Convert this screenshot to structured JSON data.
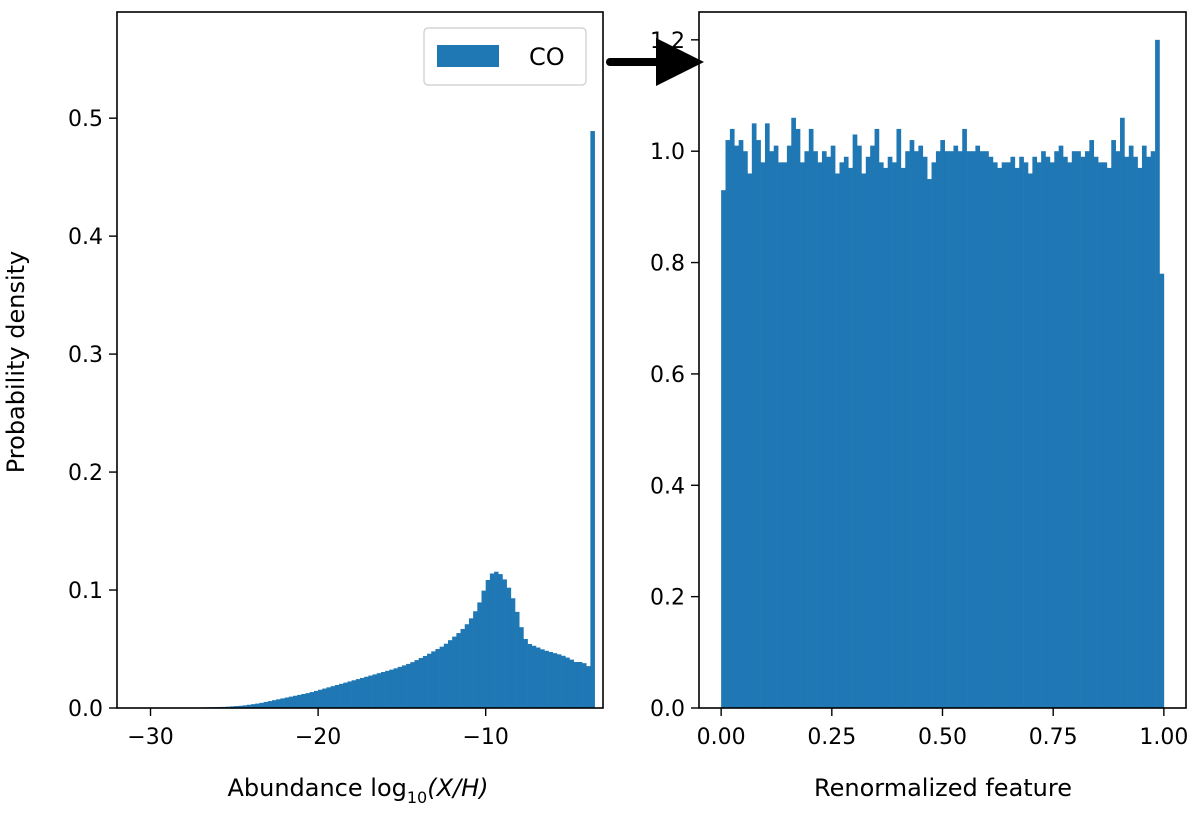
{
  "chart_data": [
    {
      "type": "bar",
      "ylabel": "Probability density",
      "xlabel_prefix": "Abundance log",
      "xlabel_subscript": "10",
      "xlabel_math": "(X/H)",
      "xlim": [
        -32,
        -3
      ],
      "ylim": [
        0,
        0.59
      ],
      "xticks": [
        -30,
        -20,
        -10
      ],
      "xtick_labels": [
        "−30",
        "−20",
        "−10"
      ],
      "yticks": [
        0.0,
        0.1,
        0.2,
        0.3,
        0.4,
        0.5
      ],
      "ytick_labels": [
        "0.0",
        "0.1",
        "0.2",
        "0.3",
        "0.4",
        "0.5"
      ],
      "color": "#1f77b4",
      "legend": {
        "label": "CO",
        "position": "top-right"
      },
      "bin_width": 0.25,
      "series": [
        {
          "x": [
            -30.5,
            -29.0,
            -27.0,
            -25.5,
            -24.5,
            -23.5,
            -22.5,
            -21.5,
            -20.5,
            -19.5,
            -18.5,
            -17.5,
            -16.5,
            -15.5,
            -14.5,
            -13.5,
            -12.5,
            -11.5,
            -11.0,
            -10.5,
            -10.25,
            -10.0,
            -9.75,
            -9.5,
            -9.25,
            -9.0,
            -8.75,
            -8.5,
            -8.25,
            -8.0,
            -7.75,
            -7.5,
            -7.0,
            -6.5,
            -6.0,
            -5.5,
            -5.0,
            -4.5,
            -4.25,
            -4.0,
            -3.75,
            -3.5
          ],
          "y": [
            0.0,
            0.0,
            0.0005,
            0.001,
            0.002,
            0.004,
            0.007,
            0.01,
            0.013,
            0.017,
            0.021,
            0.025,
            0.029,
            0.033,
            0.038,
            0.045,
            0.053,
            0.065,
            0.073,
            0.085,
            0.094,
            0.105,
            0.112,
            0.116,
            0.115,
            0.112,
            0.106,
            0.098,
            0.088,
            0.075,
            0.062,
            0.055,
            0.052,
            0.049,
            0.047,
            0.045,
            0.042,
            0.038,
            0.04,
            0.036,
            0.035,
            0.489
          ]
        }
      ]
    },
    {
      "type": "bar",
      "xlabel": "Renormalized feature",
      "xlim": [
        -0.05,
        1.05
      ],
      "ylim": [
        0,
        1.25
      ],
      "xticks": [
        0.0,
        0.25,
        0.5,
        0.75,
        1.0
      ],
      "xtick_labels": [
        "0.00",
        "0.25",
        "0.50",
        "0.75",
        "1.00"
      ],
      "yticks": [
        0.0,
        0.2,
        0.4,
        0.6,
        0.8,
        1.0,
        1.2
      ],
      "ytick_labels": [
        "0.0",
        "0.2",
        "0.4",
        "0.6",
        "0.8",
        "1.0",
        "1.2"
      ],
      "color": "#1f77b4",
      "bin_width": 0.01,
      "values": [
        0.93,
        1.02,
        1.04,
        1.01,
        1.02,
        1.0,
        0.96,
        1.05,
        1.02,
        0.98,
        1.05,
        1.0,
        1.01,
        0.98,
        0.98,
        1.01,
        1.06,
        1.04,
        0.98,
        1.0,
        1.04,
        1.0,
        0.98,
        1.0,
        0.99,
        1.01,
        0.96,
        0.98,
        0.99,
        0.97,
        1.03,
        1.01,
        0.96,
        0.99,
        1.01,
        1.04,
        0.98,
        0.97,
        0.99,
        0.98,
        1.04,
        0.97,
        1.0,
        1.02,
        1.0,
        1.01,
        0.99,
        0.95,
        0.98,
        1.0,
        1.02,
        1.0,
        1.0,
        1.01,
        1.0,
        1.04,
        1.0,
        1.0,
        1.01,
        1.0,
        1.0,
        0.99,
        0.98,
        0.97,
        0.98,
        0.98,
        0.99,
        0.97,
        0.99,
        0.98,
        0.96,
        0.99,
        0.98,
        1.0,
        0.99,
        0.98,
        1.0,
        1.01,
        0.99,
        0.98,
        1.0,
        1.0,
        0.99,
        1.0,
        1.02,
        0.99,
        0.98,
        0.98,
        0.97,
        1.02,
        1.0,
        1.06,
        0.99,
        1.01,
        0.99,
        0.97,
        1.01,
        0.99,
        1.0,
        1.2,
        0.78
      ]
    }
  ]
}
